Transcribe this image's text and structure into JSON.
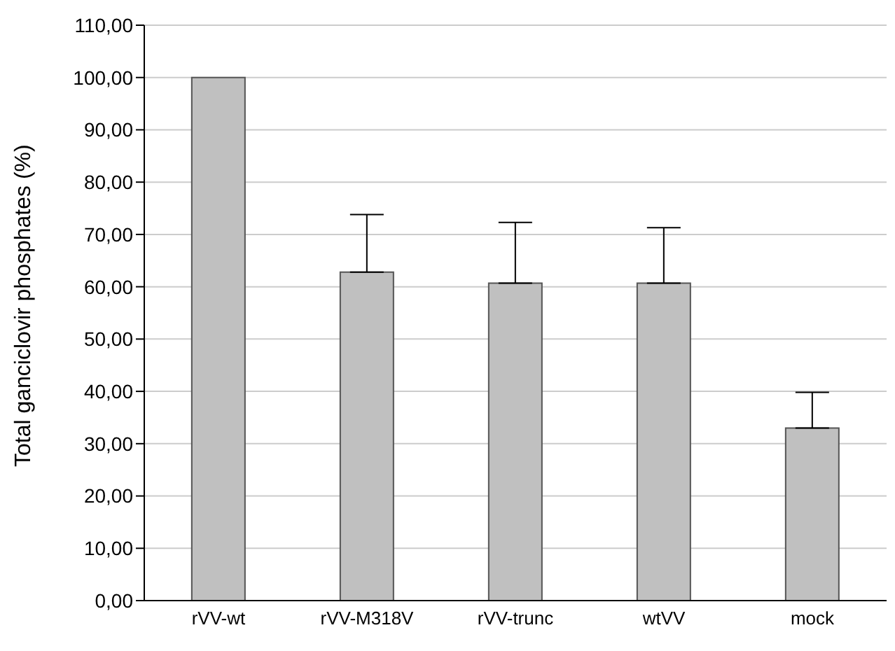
{
  "chart_data": {
    "type": "bar",
    "ylabel": "Total ganciclovir phosphates (%)",
    "categories": [
      "rVV-wt",
      "rVV-M318V",
      "rVV-trunc",
      "wtVV",
      "mock"
    ],
    "values": [
      100,
      62.8,
      60.7,
      60.7,
      33
    ],
    "errors": [
      null,
      [
        62.8,
        73.8
      ],
      [
        60.7,
        72.3
      ],
      [
        60.7,
        71.3
      ],
      [
        33,
        39.8
      ]
    ],
    "color": "#c0c0c0",
    "ylim": [
      0,
      110
    ],
    "yticks": [
      {
        "value": 0,
        "label": "0,00"
      },
      {
        "value": 10,
        "label": "10,00"
      },
      {
        "value": 20,
        "label": "20,00"
      },
      {
        "value": 30,
        "label": "30,00"
      },
      {
        "value": 40,
        "label": "40,00"
      },
      {
        "value": 50,
        "label": "50,00"
      },
      {
        "value": 60,
        "label": "60,00"
      },
      {
        "value": 70,
        "label": "70,00"
      },
      {
        "value": 80,
        "label": "80,00"
      },
      {
        "value": 90,
        "label": "90,00"
      },
      {
        "value": 100,
        "label": "100,00"
      },
      {
        "value": 110,
        "label": "110,00"
      }
    ],
    "grid": "y"
  }
}
